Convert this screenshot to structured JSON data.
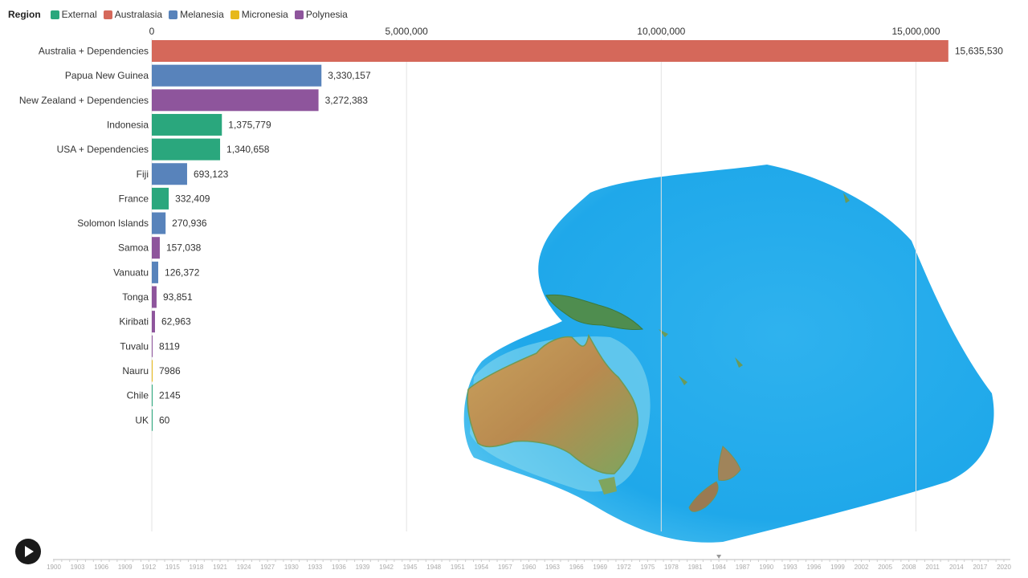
{
  "legend": {
    "title": "Region",
    "items": [
      {
        "label": "External",
        "color": "#2aa77d"
      },
      {
        "label": "Australasia",
        "color": "#d5685a"
      },
      {
        "label": "Melanesia",
        "color": "#5883bb"
      },
      {
        "label": "Micronesia",
        "color": "#e6b81b"
      },
      {
        "label": "Polynesia",
        "color": "#8e559c"
      }
    ]
  },
  "chart_data": {
    "type": "bar",
    "orientation": "horizontal",
    "xlim": [
      0,
      16000000
    ],
    "ticks": [
      {
        "value": 0,
        "label": "0"
      },
      {
        "value": 5000000,
        "label": "5,000,000"
      },
      {
        "value": 10000000,
        "label": "10,000,000"
      },
      {
        "value": 15000000,
        "label": "15,000,000"
      }
    ],
    "bars": [
      {
        "name": "Australia + Dependencies",
        "value": 15635530,
        "label": "15,635,530",
        "region": "Australasia"
      },
      {
        "name": "Papua New Guinea",
        "value": 3330157,
        "label": "3,330,157",
        "region": "Melanesia"
      },
      {
        "name": "New Zealand + Dependencies",
        "value": 3272383,
        "label": "3,272,383",
        "region": "Polynesia"
      },
      {
        "name": "Indonesia",
        "value": 1375779,
        "label": "1,375,779",
        "region": "External"
      },
      {
        "name": "USA + Dependencies",
        "value": 1340658,
        "label": "1,340,658",
        "region": "External"
      },
      {
        "name": "Fiji",
        "value": 693123,
        "label": "693,123",
        "region": "Melanesia"
      },
      {
        "name": "France",
        "value": 332409,
        "label": "332,409",
        "region": "External"
      },
      {
        "name": "Solomon Islands",
        "value": 270936,
        "label": "270,936",
        "region": "Melanesia"
      },
      {
        "name": "Samoa",
        "value": 157038,
        "label": "157,038",
        "region": "Polynesia"
      },
      {
        "name": "Vanuatu",
        "value": 126372,
        "label": "126,372",
        "region": "Melanesia"
      },
      {
        "name": "Tonga",
        "value": 93851,
        "label": "93,851",
        "region": "Polynesia"
      },
      {
        "name": "Kiribati",
        "value": 62963,
        "label": "62,963",
        "region": "Polynesia"
      },
      {
        "name": "Tuvalu",
        "value": 8119,
        "label": "8119",
        "region": "Polynesia"
      },
      {
        "name": "Nauru",
        "value": 7986,
        "label": "7986",
        "region": "Micronesia"
      },
      {
        "name": "Chile",
        "value": 2145,
        "label": "2145",
        "region": "External"
      },
      {
        "name": "UK",
        "value": 60,
        "label": "60",
        "region": "External"
      }
    ]
  },
  "timeline": {
    "years": [
      "1900",
      "1903",
      "1906",
      "1909",
      "1912",
      "1915",
      "1918",
      "1921",
      "1924",
      "1927",
      "1930",
      "1933",
      "1936",
      "1939",
      "1942",
      "1945",
      "1948",
      "1951",
      "1954",
      "1957",
      "1960",
      "1963",
      "1966",
      "1969",
      "1972",
      "1975",
      "1978",
      "1981",
      "1984",
      "1987",
      "1990",
      "1993",
      "1996",
      "1999",
      "2002",
      "2005",
      "2008",
      "2011",
      "2014",
      "2017",
      "2020"
    ],
    "current_year": 1984
  }
}
